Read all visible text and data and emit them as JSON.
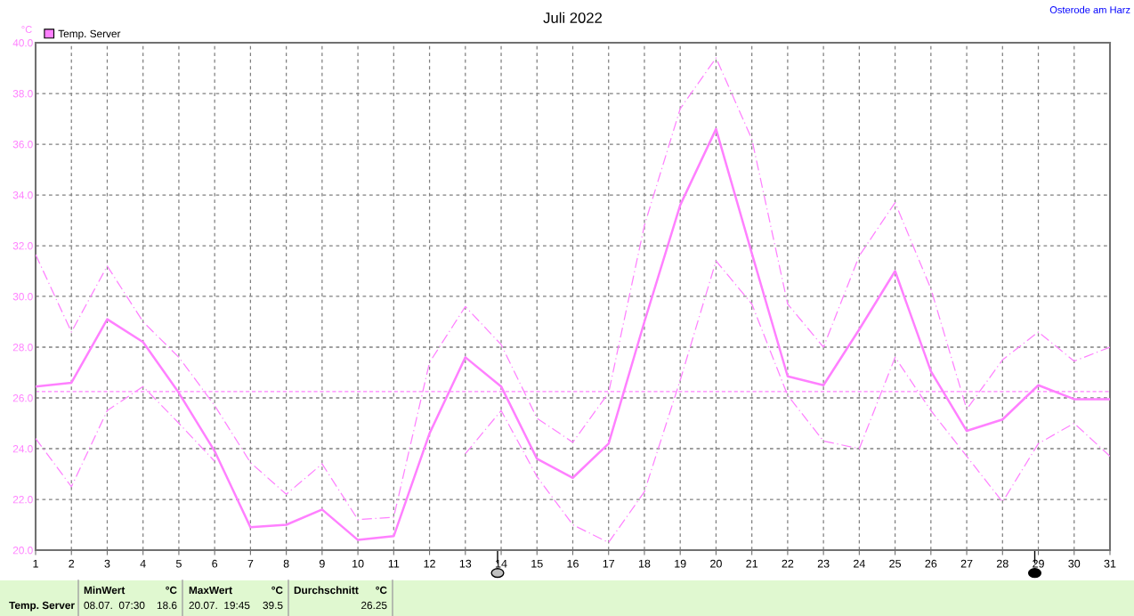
{
  "chart_data": {
    "type": "line",
    "title": "Juli 2022",
    "ylabel": "°C",
    "x": [
      1,
      2,
      3,
      4,
      5,
      6,
      7,
      8,
      9,
      10,
      11,
      12,
      13,
      14,
      15,
      16,
      17,
      18,
      19,
      20,
      21,
      22,
      23,
      24,
      25,
      26,
      27,
      28,
      29,
      30,
      31
    ],
    "series": [
      {
        "name": "Temp. Server",
        "color": "#ff80ff",
        "line_style": "solid",
        "values": [
          26.45,
          26.6,
          29.1,
          28.2,
          26.2,
          23.9,
          20.9,
          21.0,
          21.6,
          20.4,
          20.55,
          24.6,
          27.6,
          26.45,
          23.6,
          22.85,
          24.2,
          29.0,
          33.6,
          36.6,
          31.7,
          26.85,
          26.5,
          28.7,
          31.0,
          27.05,
          24.7,
          25.15,
          26.5,
          25.95,
          25.95
        ]
      },
      {
        "color": "#ff80ff",
        "line_style": "dashed",
        "values": [
          31.65,
          28.6,
          31.2,
          29.0,
          27.6,
          25.7,
          23.45,
          22.2,
          23.4,
          21.2,
          21.3,
          27.4,
          29.6,
          28.1,
          25.2,
          24.25,
          26.2,
          32.8,
          37.4,
          39.4,
          36.2,
          29.7,
          28.0,
          31.6,
          33.7,
          30.3,
          25.55,
          27.5,
          28.6,
          27.45,
          28.0
        ]
      },
      {
        "color": "#ff80ff",
        "line_style": "dashed",
        "values": [
          24.4,
          22.5,
          25.5,
          26.45,
          25.0,
          23.5,
          null,
          null,
          null,
          null,
          null,
          null,
          23.8,
          25.5,
          22.9,
          21.0,
          20.3,
          22.3,
          26.7,
          31.4,
          29.7,
          26.1,
          24.3,
          24.0,
          27.6,
          25.5,
          23.7,
          21.9,
          24.2,
          25.0,
          23.7
        ]
      }
    ],
    "xlim": [
      1,
      31
    ],
    "xticks": [
      1,
      2,
      3,
      4,
      5,
      6,
      7,
      8,
      9,
      10,
      11,
      12,
      13,
      14,
      15,
      16,
      17,
      18,
      19,
      20,
      21,
      22,
      23,
      24,
      25,
      26,
      27,
      28,
      29,
      30,
      31
    ],
    "ylim": [
      20,
      40
    ],
    "yticks": [
      {
        "value": 20,
        "label": "20.0"
      },
      {
        "value": 22,
        "label": "22.0"
      },
      {
        "value": 24,
        "label": "24.0"
      },
      {
        "value": 26,
        "label": "26.0"
      },
      {
        "value": 28,
        "label": "28.0"
      },
      {
        "value": 30,
        "label": "30.0"
      },
      {
        "value": 32,
        "label": "32.0"
      },
      {
        "value": 34,
        "label": "34.0"
      },
      {
        "value": 36,
        "label": "36.0"
      },
      {
        "value": 38,
        "label": "38.0"
      },
      {
        "value": 40,
        "label": "40.0"
      }
    ],
    "ref_lines": [
      {
        "axis": "y",
        "value": 26.25,
        "color": "#ff80ff",
        "line_style": "dotted"
      }
    ],
    "grid": true,
    "legend": "top left",
    "marker": "none",
    "annotations": [
      "Osterode am Harz",
      "Temp. Server",
      "MinWert",
      "°C",
      "08.07.  07:30",
      "18.6",
      "MaxWert",
      "°C",
      "20.07.  19:45",
      "39.5",
      "Durchschnitt",
      "°C",
      "26.25"
    ]
  }
}
